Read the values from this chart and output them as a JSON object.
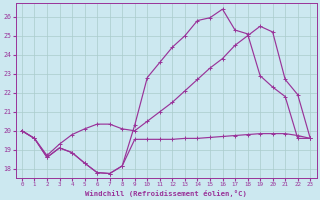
{
  "xlabel": "Windchill (Refroidissement éolien,°C)",
  "bg_color": "#cce8f0",
  "grid_color": "#aacccc",
  "line_color": "#993399",
  "xlim": [
    -0.5,
    23.5
  ],
  "ylim": [
    17.5,
    26.7
  ],
  "yticks": [
    18,
    19,
    20,
    21,
    22,
    23,
    24,
    25,
    26
  ],
  "xticks": [
    0,
    1,
    2,
    3,
    4,
    5,
    6,
    7,
    8,
    9,
    10,
    11,
    12,
    13,
    14,
    15,
    16,
    17,
    18,
    19,
    20,
    21,
    22,
    23
  ],
  "line1_x": [
    0,
    1,
    2,
    3,
    4,
    5,
    6,
    7,
    8,
    9,
    10,
    11,
    12,
    13,
    14,
    15,
    16,
    17,
    18,
    19,
    20,
    21,
    22,
    23
  ],
  "line1_y": [
    20.0,
    19.6,
    18.6,
    19.1,
    18.85,
    18.3,
    17.8,
    17.75,
    18.15,
    19.55,
    19.55,
    19.55,
    19.55,
    19.6,
    19.6,
    19.65,
    19.7,
    19.75,
    19.8,
    19.85,
    19.85,
    19.85,
    19.75,
    19.6
  ],
  "line2_x": [
    0,
    1,
    2,
    3,
    4,
    5,
    6,
    7,
    8,
    9,
    10,
    11,
    12,
    13,
    14,
    15,
    16,
    17,
    18,
    19,
    20,
    21,
    22,
    23
  ],
  "line2_y": [
    20.0,
    19.6,
    18.6,
    19.1,
    18.85,
    18.3,
    17.8,
    17.75,
    18.15,
    20.3,
    22.8,
    23.6,
    24.4,
    25.0,
    25.8,
    25.95,
    26.4,
    25.3,
    25.1,
    22.9,
    22.3,
    21.8,
    19.6,
    19.6
  ],
  "line3_x": [
    0,
    1,
    2,
    3,
    4,
    5,
    6,
    7,
    8,
    9,
    10,
    11,
    12,
    13,
    14,
    15,
    16,
    17,
    18,
    19,
    20,
    21,
    22,
    23
  ],
  "line3_y": [
    20.0,
    19.6,
    18.7,
    19.3,
    19.8,
    20.1,
    20.35,
    20.35,
    20.1,
    20.0,
    20.5,
    21.0,
    21.5,
    22.1,
    22.7,
    23.3,
    23.8,
    24.5,
    25.0,
    25.5,
    25.2,
    22.7,
    21.9,
    19.6
  ]
}
